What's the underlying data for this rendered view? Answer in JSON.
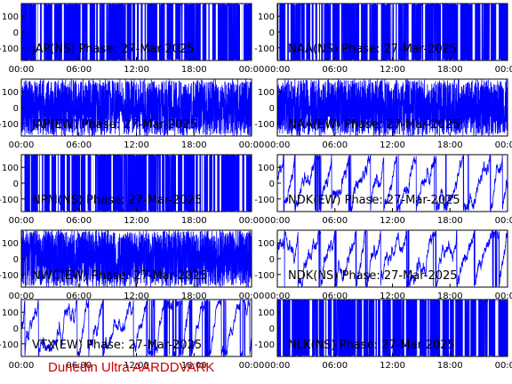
{
  "footer_text": "Dunedin Ultra AARDDVARK",
  "colors": {
    "signal": "#0000ff",
    "frame": "#000000",
    "background": "#ffffff",
    "footer": "#cc0000"
  },
  "chart_data": [
    {
      "type": "line",
      "title": "JAP(NS) Phase: 27-Mar-2025",
      "xlim": [
        0,
        24
      ],
      "ylim": [
        -180,
        180
      ],
      "xticks": [
        "00:00",
        "06:00",
        "12:00",
        "18:00",
        "00:00"
      ],
      "yticks": [
        "100",
        "0",
        "-100"
      ],
      "grid": false,
      "pattern": "saturated"
    },
    {
      "type": "line",
      "title": "NAA(NS) Phase: 27-Mar-2025",
      "xlim": [
        0,
        24
      ],
      "ylim": [
        -180,
        180
      ],
      "xticks": [
        "00:00",
        "06:00",
        "12:00",
        "18:00",
        "00:00"
      ],
      "yticks": [
        "100",
        "0",
        "-100"
      ],
      "grid": false,
      "pattern": "saturated"
    },
    {
      "type": "line",
      "title": "JAP(EW) Phase: 27-Mar-2025",
      "xlim": [
        0,
        24
      ],
      "ylim": [
        -180,
        180
      ],
      "xticks": [
        "00:00",
        "06:00",
        "12:00",
        "18:00",
        "00:00"
      ],
      "yticks": [
        "100",
        "0",
        "-100"
      ],
      "grid": false,
      "pattern": "dense"
    },
    {
      "type": "line",
      "title": "NAA(EW) Phase: 27-Mar-2025",
      "xlim": [
        0,
        24
      ],
      "ylim": [
        -180,
        180
      ],
      "xticks": [
        "00:00",
        "06:00",
        "12:00",
        "18:00",
        "00:00"
      ],
      "yticks": [
        "100",
        "0",
        "-100"
      ],
      "grid": false,
      "pattern": "dense"
    },
    {
      "type": "line",
      "title": "NPM(NS) Phase: 27-Mar-2025",
      "xlim": [
        0,
        24
      ],
      "ylim": [
        -180,
        180
      ],
      "xticks": [
        "00:00",
        "06:00",
        "12:00",
        "18:00",
        "00:00"
      ],
      "yticks": [
        "100",
        "0",
        "-100"
      ],
      "grid": false,
      "pattern": "saturated"
    },
    {
      "type": "line",
      "title": "NDK(EW) Phase: 27-Mar-2025",
      "xlim": [
        0,
        24
      ],
      "ylim": [
        -180,
        180
      ],
      "xticks": [
        "00:00",
        "06:00",
        "12:00",
        "18:00",
        "00:00"
      ],
      "yticks": [
        "100",
        "0",
        "-100"
      ],
      "grid": false,
      "pattern": "wrapping"
    },
    {
      "type": "line",
      "title": "NWC(EW) Phase: 27-Mar-2025",
      "xlim": [
        0,
        24
      ],
      "ylim": [
        -180,
        180
      ],
      "xticks": [
        "00:00",
        "06:00",
        "12:00",
        "18:00",
        "00:00"
      ],
      "yticks": [
        "100",
        "0",
        "-100"
      ],
      "grid": false,
      "pattern": "dense"
    },
    {
      "type": "line",
      "title": "NDK(NS) Phase: 27-Mar-2025",
      "xlim": [
        0,
        24
      ],
      "ylim": [
        -180,
        180
      ],
      "xticks": [
        "00:00",
        "06:00",
        "12:00",
        "18:00",
        "00:00"
      ],
      "yticks": [
        "100",
        "0",
        "-100"
      ],
      "grid": false,
      "pattern": "wrapping"
    },
    {
      "type": "line",
      "title": "VTX(EW) Phase: 27-Mar-2025",
      "xlim": [
        0,
        24
      ],
      "ylim": [
        -180,
        180
      ],
      "xticks": [
        "00:00",
        "06:00",
        "12:00",
        "18:00",
        "00:00"
      ],
      "yticks": [
        "100",
        "0",
        "-100"
      ],
      "grid": false,
      "pattern": "wrapping"
    },
    {
      "type": "line",
      "title": "NLK(NS) Phase: 27-Mar-2025",
      "xlim": [
        0,
        24
      ],
      "ylim": [
        -180,
        180
      ],
      "xticks": [
        "00:00",
        "06:00",
        "12:00",
        "18:00",
        "00:00"
      ],
      "yticks": [
        "100",
        "0",
        "-100"
      ],
      "grid": false,
      "pattern": "saturated"
    }
  ]
}
